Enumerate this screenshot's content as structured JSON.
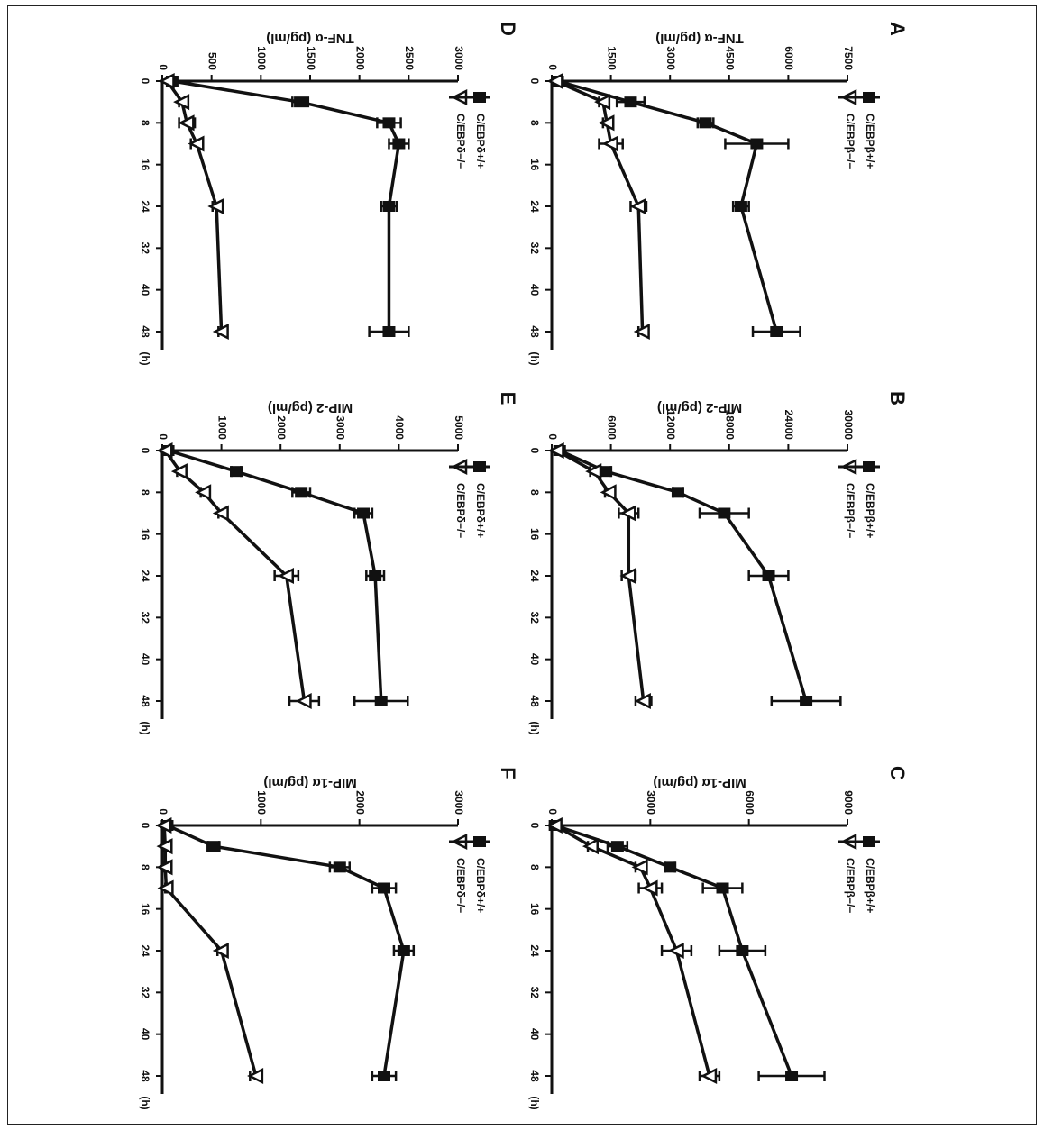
{
  "panels": [
    {
      "letter": "A",
      "ylabel": "TNF-α (pg/ml)",
      "yticks": [
        "0",
        "1500",
        "3000",
        "4500",
        "6000",
        "7500"
      ],
      "ymax": 7500,
      "xticks": [
        "0",
        "8",
        "16",
        "24",
        "32",
        "40",
        "48"
      ],
      "xunit": "(h)",
      "series": [
        {
          "name": "C/EBPβ+/+",
          "marker": "square",
          "x": [
            0,
            4,
            8,
            12,
            24,
            48
          ],
          "y": [
            150,
            2000,
            3900,
            5200,
            4800,
            5700
          ],
          "err": [
            0,
            350,
            200,
            800,
            200,
            600
          ]
        },
        {
          "name": "C/EBPβ−/−",
          "marker": "triangle",
          "x": [
            0,
            4,
            8,
            12,
            24,
            48
          ],
          "y": [
            100,
            1300,
            1400,
            1500,
            2200,
            2300
          ],
          "err": [
            0,
            100,
            100,
            300,
            200,
            100
          ]
        }
      ]
    },
    {
      "letter": "B",
      "ylabel": "MIP-2 (pg/ml)",
      "yticks": [
        "0",
        "6000",
        "12000",
        "18000",
        "24000",
        "30000"
      ],
      "ymax": 30000,
      "xticks": [
        "0",
        "8",
        "16",
        "24",
        "32",
        "40",
        "48"
      ],
      "xunit": "(h)",
      "series": [
        {
          "name": "C/EBPβ+/+",
          "marker": "square",
          "x": [
            0,
            4,
            8,
            12,
            24,
            48
          ],
          "y": [
            800,
            5500,
            12800,
            17500,
            22000,
            25800
          ],
          "err": [
            0,
            500,
            500,
            2500,
            2000,
            3500
          ]
        },
        {
          "name": "C/EBPβ−/−",
          "marker": "triangle",
          "x": [
            0,
            4,
            8,
            12,
            24,
            48
          ],
          "y": [
            500,
            4300,
            5800,
            7800,
            7800,
            9300
          ],
          "err": [
            0,
            400,
            400,
            1000,
            700,
            800
          ]
        }
      ]
    },
    {
      "letter": "C",
      "ylabel": "MIP-1α (pg/ml)",
      "yticks": [
        "0",
        "3000",
        "6000",
        "9000"
      ],
      "ymax": 9000,
      "xticks": [
        "0",
        "8",
        "16",
        "24",
        "32",
        "40",
        "48"
      ],
      "xunit": "(h)",
      "series": [
        {
          "name": "C/EBPβ+/+",
          "marker": "square",
          "x": [
            0,
            4,
            8,
            12,
            24,
            48
          ],
          "y": [
            100,
            2000,
            3600,
            5200,
            5800,
            7300
          ],
          "err": [
            0,
            300,
            150,
            600,
            700,
            1000
          ]
        },
        {
          "name": "C/EBPβ−/−",
          "marker": "triangle",
          "x": [
            0,
            4,
            8,
            12,
            24,
            48
          ],
          "y": [
            100,
            1200,
            2700,
            3000,
            3800,
            4800
          ],
          "err": [
            0,
            100,
            150,
            350,
            450,
            300
          ]
        }
      ]
    },
    {
      "letter": "D",
      "ylabel": "TNF-α (pg/ml)",
      "yticks": [
        "0",
        "500",
        "1000",
        "1500",
        "2000",
        "2500",
        "3000"
      ],
      "ymax": 3000,
      "xticks": [
        "0",
        "8",
        "16",
        "24",
        "32",
        "40",
        "48"
      ],
      "xunit": "(h)",
      "series": [
        {
          "name": "C/EBPδ+/+",
          "marker": "square",
          "x": [
            0,
            4,
            8,
            12,
            24,
            48
          ],
          "y": [
            100,
            1400,
            2300,
            2400,
            2300,
            2300
          ],
          "err": [
            0,
            80,
            120,
            100,
            80,
            200
          ]
        },
        {
          "name": "C/EBPδ−/−",
          "marker": "triangle",
          "x": [
            0,
            4,
            8,
            12,
            24,
            48
          ],
          "y": [
            50,
            200,
            250,
            350,
            550,
            600
          ],
          "err": [
            0,
            30,
            80,
            60,
            40,
            30
          ]
        }
      ]
    },
    {
      "letter": "E",
      "ylabel": "MIP-2 (pg/ml)",
      "yticks": [
        "0",
        "1000",
        "2000",
        "3000",
        "4000",
        "5000"
      ],
      "ymax": 5000,
      "xticks": [
        "0",
        "8",
        "16",
        "24",
        "32",
        "40",
        "48"
      ],
      "xunit": "(h)",
      "series": [
        {
          "name": "C/EBPδ+/+",
          "marker": "square",
          "x": [
            0,
            4,
            8,
            12,
            24,
            48
          ],
          "y": [
            100,
            1250,
            2350,
            3400,
            3600,
            3700
          ],
          "err": [
            0,
            80,
            150,
            150,
            150,
            450
          ]
        },
        {
          "name": "C/EBPδ−/−",
          "marker": "triangle",
          "x": [
            0,
            4,
            8,
            12,
            24,
            48
          ],
          "y": [
            50,
            300,
            700,
            1000,
            2100,
            2400
          ],
          "err": [
            0,
            50,
            50,
            50,
            200,
            250
          ]
        }
      ]
    },
    {
      "letter": "F",
      "ylabel": "MIP-1α (pg/ml)",
      "yticks": [
        "0",
        "1000",
        "2000",
        "3000"
      ],
      "ymax": 3000,
      "xticks": [
        "0",
        "8",
        "16",
        "24",
        "32",
        "40",
        "48"
      ],
      "xunit": "(h)",
      "series": [
        {
          "name": "C/EBPδ+/+",
          "marker": "square",
          "x": [
            0,
            4,
            8,
            12,
            24,
            48
          ],
          "y": [
            50,
            520,
            1800,
            2250,
            2450,
            2250
          ],
          "err": [
            0,
            60,
            100,
            120,
            100,
            120
          ]
        },
        {
          "name": "C/EBPδ−/−",
          "marker": "triangle",
          "x": [
            0,
            4,
            8,
            12,
            24,
            48
          ],
          "y": [
            20,
            30,
            30,
            40,
            600,
            950
          ],
          "err": [
            0,
            10,
            10,
            10,
            40,
            60
          ]
        }
      ]
    }
  ],
  "chart_data": [
    {
      "type": "line",
      "title": "A",
      "xlabel": "(h)",
      "ylabel": "TNF-α (pg/ml)",
      "ylim": [
        0,
        7500
      ],
      "xlim": [
        0,
        48
      ],
      "series": [
        {
          "name": "C/EBPβ+/+",
          "x": [
            0,
            4,
            8,
            12,
            24,
            48
          ],
          "y": [
            150,
            2000,
            3900,
            5200,
            4800,
            5700
          ]
        },
        {
          "name": "C/EBPβ−/−",
          "x": [
            0,
            4,
            8,
            12,
            24,
            48
          ],
          "y": [
            100,
            1300,
            1400,
            1500,
            2200,
            2300
          ]
        }
      ]
    },
    {
      "type": "line",
      "title": "B",
      "xlabel": "(h)",
      "ylabel": "MIP-2 (pg/ml)",
      "ylim": [
        0,
        30000
      ],
      "xlim": [
        0,
        48
      ],
      "series": [
        {
          "name": "C/EBPβ+/+",
          "x": [
            0,
            4,
            8,
            12,
            24,
            48
          ],
          "y": [
            800,
            5500,
            12800,
            17500,
            22000,
            25800
          ]
        },
        {
          "name": "C/EBPβ−/−",
          "x": [
            0,
            4,
            8,
            12,
            24,
            48
          ],
          "y": [
            500,
            4300,
            5800,
            7800,
            7800,
            9300
          ]
        }
      ]
    },
    {
      "type": "line",
      "title": "C",
      "xlabel": "(h)",
      "ylabel": "MIP-1α (pg/ml)",
      "ylim": [
        0,
        9000
      ],
      "xlim": [
        0,
        48
      ],
      "series": [
        {
          "name": "C/EBPβ+/+",
          "x": [
            0,
            4,
            8,
            12,
            24,
            48
          ],
          "y": [
            100,
            2000,
            3600,
            5200,
            5800,
            7300
          ]
        },
        {
          "name": "C/EBPβ−/−",
          "x": [
            0,
            4,
            8,
            12,
            24,
            48
          ],
          "y": [
            100,
            1200,
            2700,
            3000,
            3800,
            4800
          ]
        }
      ]
    },
    {
      "type": "line",
      "title": "D",
      "xlabel": "(h)",
      "ylabel": "TNF-α (pg/ml)",
      "ylim": [
        0,
        3000
      ],
      "xlim": [
        0,
        48
      ],
      "series": [
        {
          "name": "C/EBPδ+/+",
          "x": [
            0,
            4,
            8,
            12,
            24,
            48
          ],
          "y": [
            100,
            1400,
            2300,
            2400,
            2300,
            2300
          ]
        },
        {
          "name": "C/EBPδ−/−",
          "x": [
            0,
            4,
            8,
            12,
            24,
            48
          ],
          "y": [
            50,
            200,
            250,
            350,
            550,
            600
          ]
        }
      ]
    },
    {
      "type": "line",
      "title": "E",
      "xlabel": "(h)",
      "ylabel": "MIP-2 (pg/ml)",
      "ylim": [
        0,
        5000
      ],
      "xlim": [
        0,
        48
      ],
      "series": [
        {
          "name": "C/EBPδ+/+",
          "x": [
            0,
            4,
            8,
            12,
            24,
            48
          ],
          "y": [
            100,
            1250,
            2350,
            3400,
            3600,
            3700
          ]
        },
        {
          "name": "C/EBPδ−/−",
          "x": [
            0,
            4,
            8,
            12,
            24,
            48
          ],
          "y": [
            50,
            300,
            700,
            1000,
            2100,
            2400
          ]
        }
      ]
    },
    {
      "type": "line",
      "title": "F",
      "xlabel": "(h)",
      "ylabel": "MIP-1α (pg/ml)",
      "ylim": [
        0,
        3000
      ],
      "xlim": [
        0,
        48
      ],
      "series": [
        {
          "name": "C/EBPδ+/+",
          "x": [
            0,
            4,
            8,
            12,
            24,
            48
          ],
          "y": [
            50,
            520,
            1800,
            2250,
            2450,
            2250
          ]
        },
        {
          "name": "C/EBPδ−/−",
          "x": [
            0,
            4,
            8,
            12,
            24,
            48
          ],
          "y": [
            20,
            30,
            30,
            40,
            600,
            950
          ]
        }
      ]
    }
  ]
}
